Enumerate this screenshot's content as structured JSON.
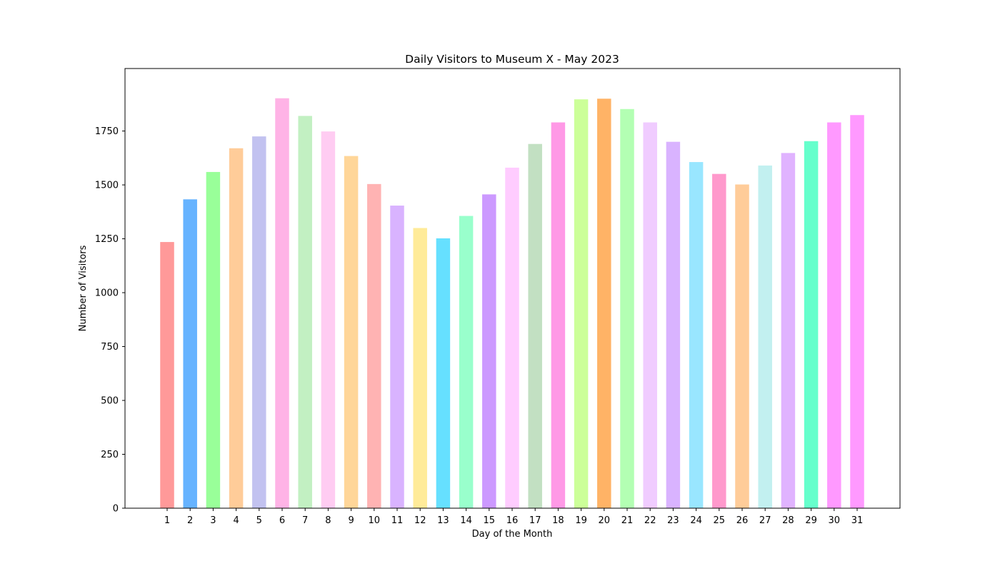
{
  "chart_data": {
    "type": "bar",
    "title": "Daily Visitors to Museum X - May 2023",
    "xlabel": "Day of the Month",
    "ylabel": "Number of Visitors",
    "ylim": [
      0,
      2040
    ],
    "yticks": [
      0,
      250,
      500,
      750,
      1000,
      1250,
      1500,
      1750
    ],
    "categories": [
      "1",
      "2",
      "3",
      "4",
      "5",
      "6",
      "7",
      "8",
      "9",
      "10",
      "11",
      "12",
      "13",
      "14",
      "15",
      "16",
      "17",
      "18",
      "19",
      "20",
      "21",
      "22",
      "23",
      "24",
      "25",
      "26",
      "27",
      "28",
      "29",
      "30",
      "31"
    ],
    "values": [
      1235,
      1433,
      1560,
      1670,
      1725,
      1902,
      1820,
      1748,
      1634,
      1504,
      1404,
      1300,
      1252,
      1356,
      1456,
      1580,
      1690,
      1790,
      1897,
      1900,
      1852,
      1790,
      1700,
      1606,
      1551,
      1502,
      1590,
      1648,
      1703,
      1790,
      1824
    ],
    "colors": [
      "#ff9999",
      "#66b3ff",
      "#99ff99",
      "#ffcc99",
      "#c2c2f0",
      "#ffb3e6",
      "#c2f0c2",
      "#ffccf2",
      "#ffd699",
      "#ffb3b3",
      "#d9b3ff",
      "#ffeb99",
      "#66e0ff",
      "#99ffcc",
      "#cc99ff",
      "#ffccff",
      "#c2e0c2",
      "#ff99e6",
      "#ccff99",
      "#ffb366",
      "#b3ffb3",
      "#f0ccff",
      "#d9b3ff",
      "#99e6ff",
      "#ff99cc",
      "#ffcc99",
      "#c2f0f0",
      "#e0b3ff",
      "#66ffcc",
      "#ff99ff",
      "#ff99ff"
    ],
    "grid": false,
    "legend": "none"
  }
}
